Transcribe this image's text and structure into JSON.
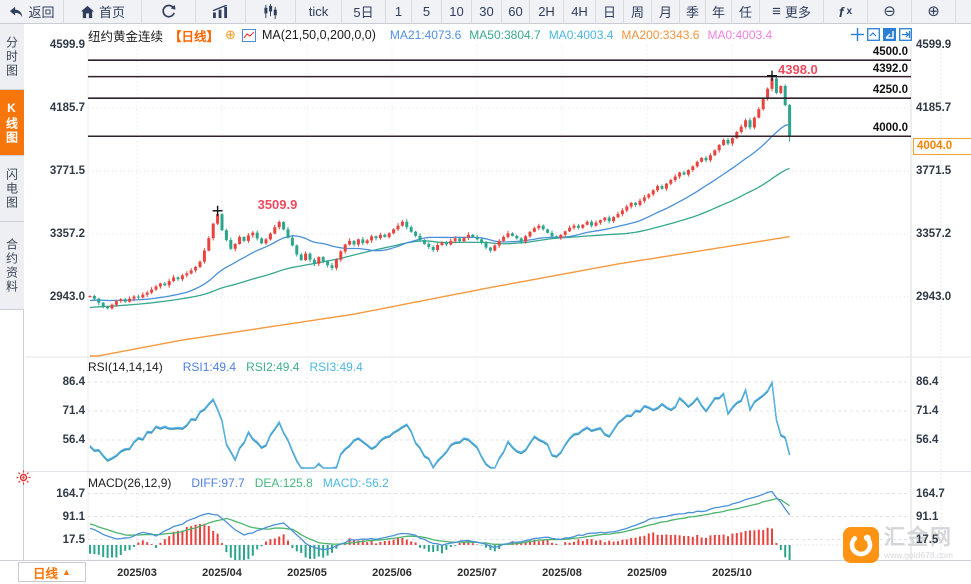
{
  "toolbar": {
    "items": [
      {
        "id": "back",
        "icon": "back-arrow-icon",
        "label": "返回"
      },
      {
        "id": "home",
        "icon": "home-icon",
        "label": "首页"
      },
      {
        "id": "refresh",
        "icon": "refresh-icon",
        "label": ""
      },
      {
        "id": "area-chart",
        "icon": "area-chart-icon",
        "label": ""
      },
      {
        "id": "candlestick",
        "icon": "candlestick-icon",
        "label": ""
      },
      {
        "id": "tick",
        "label": "tick"
      },
      {
        "id": "5d",
        "label": "5日"
      },
      {
        "id": "1m",
        "label": "1"
      },
      {
        "id": "5m",
        "label": "5"
      },
      {
        "id": "10m",
        "label": "10"
      },
      {
        "id": "30m",
        "label": "30"
      },
      {
        "id": "60m",
        "label": "60"
      },
      {
        "id": "2h",
        "label": "2H"
      },
      {
        "id": "4h",
        "label": "4H"
      },
      {
        "id": "day",
        "label": "日"
      },
      {
        "id": "week",
        "label": "周"
      },
      {
        "id": "month",
        "label": "月"
      },
      {
        "id": "quarter",
        "label": "季"
      },
      {
        "id": "year",
        "label": "年"
      },
      {
        "id": "custom",
        "label": "任"
      },
      {
        "id": "more",
        "icon": "menu-icon",
        "label": "更多"
      },
      {
        "id": "fx",
        "icon": "fx-icon",
        "label": ""
      },
      {
        "id": "zoom-out",
        "icon": "zoom-out-icon",
        "label": ""
      },
      {
        "id": "zoom-in",
        "icon": "zoom-in-icon",
        "label": ""
      }
    ]
  },
  "sidebar": {
    "items": [
      {
        "id": "time-chart",
        "label": "分时图",
        "active": false
      },
      {
        "id": "kline-chart",
        "label": "K线图",
        "active": true
      },
      {
        "id": "lightning-chart",
        "label": "闪电图",
        "active": false
      },
      {
        "id": "contract-info",
        "label": "合约资料",
        "active": false
      }
    ]
  },
  "chart_header": {
    "symbol": "纽约黄金连续",
    "period_tag": "【日线】",
    "plus": "⊕",
    "ma_formula": "MA(21,50,0,200,0,0)",
    "ma_values": [
      {
        "label": "MA21:4073.6",
        "color": "#4f8fdd"
      },
      {
        "label": "MA50:3804.7",
        "color": "#3ba88d"
      },
      {
        "label": "MA0:4003.4",
        "color": "#4db7e2"
      },
      {
        "label": "MA200:3343.6",
        "color": "#f0953f"
      },
      {
        "label": "MA0:4003.4",
        "color": "#ef7fdf"
      }
    ]
  },
  "price_axis": {
    "ticks": [
      "4599.9",
      "4185.7",
      "3771.5",
      "3357.2",
      "2943.0"
    ],
    "tick_values": [
      4599.9,
      4185.7,
      3771.5,
      3357.2,
      2943.0
    ],
    "levels": [
      {
        "label": "4500.0",
        "value": 4500.0
      },
      {
        "label": "4392.0",
        "value": 4392.0
      },
      {
        "label": "4250.0",
        "value": 4250.0
      },
      {
        "label": "4000.0",
        "value": 4000.0
      }
    ],
    "current_price": {
      "label": "4004.0",
      "value": 4004.0,
      "color": "#f08300"
    }
  },
  "annotations": [
    {
      "label": "3509.9",
      "index": 29,
      "value": 3509.9
    },
    {
      "label": "4398.0",
      "index": 155,
      "value": 4398.0
    }
  ],
  "rsi_pane": {
    "title": "RSI(14,14,14)",
    "values": [
      {
        "label": "RSI1:49.4",
        "color": "#4f80dd"
      },
      {
        "label": "RSI2:49.4",
        "color": "#3fae8f"
      },
      {
        "label": "RSI3:49.4",
        "color": "#4db7e2"
      }
    ],
    "ticks": [
      "86.4",
      "71.4",
      "56.4"
    ],
    "tick_values": [
      86.4,
      71.4,
      56.4
    ]
  },
  "macd_pane": {
    "title": "MACD(26,12,9)",
    "values": [
      {
        "label": "DIFF:97.7",
        "color": "#4f80dd"
      },
      {
        "label": "DEA:125.8",
        "color": "#45b97c"
      },
      {
        "label": "MACD:-56.2",
        "color": "#4db7e2"
      }
    ],
    "ticks": [
      "164.7",
      "91.1",
      "17.5"
    ],
    "tick_values": [
      164.7,
      91.1,
      17.5
    ]
  },
  "xaxis": {
    "period_label": "日线",
    "period_arrow": "▲",
    "months": [
      "2025/03",
      "2025/04",
      "2025/05",
      "2025/06",
      "2025/07",
      "2025/08",
      "2025/09",
      "2025/10"
    ],
    "month_x": [
      137,
      222,
      307,
      392,
      477,
      562,
      647,
      732
    ]
  },
  "watermark": {
    "title": "汇金网",
    "url": "www.gold678.com",
    "brand_color": "#ff8a00"
  },
  "chart_data": {
    "type": "candlestick",
    "symbol": "纽约黄金连续 (NY Gold continuous, daily)",
    "first_open": 2945,
    "closes": [
      2950,
      2932,
      2905,
      2878,
      2868,
      2892,
      2916,
      2928,
      2912,
      2932,
      2946,
      2940,
      2958,
      2972,
      2992,
      3012,
      3032,
      3020,
      3048,
      3072,
      3060,
      3085,
      3098,
      3118,
      3140,
      3175,
      3248,
      3330,
      3425,
      3488,
      3382,
      3318,
      3260,
      3292,
      3338,
      3312,
      3348,
      3366,
      3328,
      3296,
      3322,
      3360,
      3402,
      3436,
      3388,
      3332,
      3282,
      3222,
      3186,
      3228,
      3188,
      3162,
      3205,
      3178,
      3152,
      3134,
      3188,
      3242,
      3288,
      3312,
      3288,
      3322,
      3298,
      3315,
      3342,
      3330,
      3352,
      3338,
      3362,
      3388,
      3412,
      3438,
      3402,
      3372,
      3345,
      3318,
      3292,
      3272,
      3252,
      3285,
      3302,
      3288,
      3312,
      3328,
      3310,
      3332,
      3352,
      3338,
      3322,
      3298,
      3268,
      3248,
      3282,
      3312,
      3338,
      3362,
      3345,
      3328,
      3308,
      3342,
      3372,
      3395,
      3412,
      3388,
      3365,
      3342,
      3330,
      3352,
      3375,
      3398,
      3412,
      3398,
      3418,
      3438,
      3412,
      3432,
      3448,
      3465,
      3442,
      3468,
      3488,
      3512,
      3538,
      3562,
      3548,
      3575,
      3598,
      3618,
      3645,
      3672,
      3655,
      3688,
      3712,
      3735,
      3762,
      3748,
      3778,
      3802,
      3832,
      3858,
      3842,
      3875,
      3908,
      3942,
      3975,
      3952,
      3988,
      4028,
      4062,
      4105,
      4058,
      4122,
      4178,
      4245,
      4312,
      4380,
      4285,
      4330,
      4205,
      4004
    ],
    "high_overrides": {
      "29": 3509.9,
      "155": 4398.0
    },
    "last_low": 3965,
    "ma200_anchors": [
      [
        0,
        2545
      ],
      [
        21,
        2660
      ],
      [
        60,
        2830
      ],
      [
        90,
        3000
      ],
      [
        120,
        3160
      ],
      [
        159,
        3340
      ]
    ],
    "rsi_anchors": [
      [
        0,
        55
      ],
      [
        4,
        45
      ],
      [
        8,
        52
      ],
      [
        12,
        58
      ],
      [
        16,
        64
      ],
      [
        20,
        62
      ],
      [
        24,
        68
      ],
      [
        28,
        78
      ],
      [
        30,
        66
      ],
      [
        31,
        55
      ],
      [
        33,
        47
      ],
      [
        36,
        60
      ],
      [
        39,
        52
      ],
      [
        43,
        66
      ],
      [
        46,
        52
      ],
      [
        48,
        42
      ],
      [
        50,
        38
      ],
      [
        52,
        45
      ],
      [
        54,
        38
      ],
      [
        56,
        44
      ],
      [
        58,
        52
      ],
      [
        61,
        57
      ],
      [
        64,
        53
      ],
      [
        67,
        58
      ],
      [
        70,
        63
      ],
      [
        72,
        65
      ],
      [
        75,
        52
      ],
      [
        78,
        44
      ],
      [
        80,
        48
      ],
      [
        82,
        53
      ],
      [
        84,
        55
      ],
      [
        86,
        57
      ],
      [
        88,
        52
      ],
      [
        90,
        45
      ],
      [
        92,
        42
      ],
      [
        95,
        56
      ],
      [
        98,
        50
      ],
      [
        101,
        58
      ],
      [
        104,
        53
      ],
      [
        106,
        47
      ],
      [
        109,
        58
      ],
      [
        112,
        61
      ],
      [
        115,
        63
      ],
      [
        118,
        59
      ],
      [
        121,
        67
      ],
      [
        124,
        71
      ],
      [
        126,
        74
      ],
      [
        128,
        71
      ],
      [
        130,
        75
      ],
      [
        132,
        71
      ],
      [
        134,
        77
      ],
      [
        136,
        73
      ],
      [
        138,
        78
      ],
      [
        140,
        71
      ],
      [
        142,
        77
      ],
      [
        144,
        80
      ],
      [
        145,
        71
      ],
      [
        147,
        75
      ],
      [
        149,
        82
      ],
      [
        150,
        73
      ],
      [
        152,
        79
      ],
      [
        154,
        83
      ],
      [
        155,
        86
      ],
      [
        156,
        66
      ],
      [
        157,
        60
      ],
      [
        158,
        57
      ],
      [
        159,
        49.4
      ]
    ],
    "diff_anchors": [
      [
        0,
        55
      ],
      [
        3,
        35
      ],
      [
        6,
        18
      ],
      [
        9,
        25
      ],
      [
        12,
        40
      ],
      [
        15,
        30
      ],
      [
        18,
        52
      ],
      [
        21,
        68
      ],
      [
        24,
        88
      ],
      [
        27,
        102
      ],
      [
        29,
        95
      ],
      [
        32,
        60
      ],
      [
        35,
        30
      ],
      [
        38,
        45
      ],
      [
        41,
        60
      ],
      [
        44,
        72
      ],
      [
        47,
        30
      ],
      [
        50,
        -5
      ],
      [
        53,
        -15
      ],
      [
        56,
        -5
      ],
      [
        59,
        15
      ],
      [
        62,
        20
      ],
      [
        65,
        18
      ],
      [
        68,
        25
      ],
      [
        71,
        38
      ],
      [
        74,
        30
      ],
      [
        77,
        10
      ],
      [
        80,
        0
      ],
      [
        83,
        8
      ],
      [
        86,
        15
      ],
      [
        89,
        5
      ],
      [
        92,
        -8
      ],
      [
        95,
        5
      ],
      [
        98,
        12
      ],
      [
        101,
        22
      ],
      [
        104,
        25
      ],
      [
        107,
        18
      ],
      [
        110,
        28
      ],
      [
        113,
        35
      ],
      [
        116,
        40
      ],
      [
        119,
        42
      ],
      [
        122,
        55
      ],
      [
        125,
        70
      ],
      [
        128,
        85
      ],
      [
        131,
        92
      ],
      [
        134,
        100
      ],
      [
        137,
        105
      ],
      [
        140,
        110
      ],
      [
        143,
        122
      ],
      [
        146,
        130
      ],
      [
        149,
        145
      ],
      [
        152,
        158
      ],
      [
        154,
        168
      ],
      [
        155,
        170
      ],
      [
        156,
        150
      ],
      [
        157,
        135
      ],
      [
        158,
        115
      ],
      [
        159,
        97.7
      ]
    ],
    "dea_anchors": [
      [
        0,
        68
      ],
      [
        4,
        48
      ],
      [
        8,
        32
      ],
      [
        12,
        33
      ],
      [
        16,
        34
      ],
      [
        20,
        40
      ],
      [
        24,
        55
      ],
      [
        28,
        75
      ],
      [
        31,
        85
      ],
      [
        34,
        70
      ],
      [
        37,
        55
      ],
      [
        40,
        50
      ],
      [
        43,
        55
      ],
      [
        46,
        50
      ],
      [
        49,
        25
      ],
      [
        52,
        8
      ],
      [
        55,
        2
      ],
      [
        58,
        4
      ],
      [
        61,
        10
      ],
      [
        64,
        14
      ],
      [
        67,
        17
      ],
      [
        70,
        24
      ],
      [
        73,
        29
      ],
      [
        76,
        24
      ],
      [
        79,
        14
      ],
      [
        82,
        9
      ],
      [
        85,
        9
      ],
      [
        88,
        9
      ],
      [
        91,
        4
      ],
      [
        94,
        1
      ],
      [
        97,
        5
      ],
      [
        100,
        11
      ],
      [
        103,
        17
      ],
      [
        106,
        17
      ],
      [
        109,
        19
      ],
      [
        112,
        25
      ],
      [
        115,
        31
      ],
      [
        118,
        35
      ],
      [
        121,
        41
      ],
      [
        124,
        51
      ],
      [
        127,
        63
      ],
      [
        130,
        73
      ],
      [
        133,
        81
      ],
      [
        136,
        89
      ],
      [
        139,
        95
      ],
      [
        142,
        102
      ],
      [
        145,
        111
      ],
      [
        148,
        119
      ],
      [
        151,
        129
      ],
      [
        154,
        142
      ],
      [
        156,
        148
      ],
      [
        157,
        145
      ],
      [
        158,
        136
      ],
      [
        159,
        125.8
      ]
    ],
    "colors": {
      "up": "#e9433e",
      "down": "#2ca58d",
      "ma21": "#4a90d9",
      "ma50": "#35a78e",
      "ma200": "#f59a3e",
      "rsi1": "#4f80dd",
      "rsi2": "#3fae8f",
      "rsi3": "#56b7e6",
      "diff": "#4a90d9",
      "dea": "#4db36a",
      "level_line": "#33222b",
      "grid": "#dfe3ea"
    }
  }
}
